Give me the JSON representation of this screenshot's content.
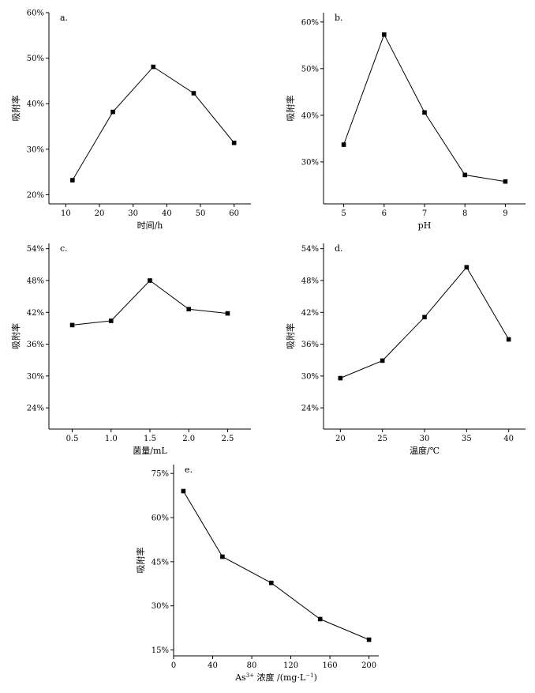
{
  "chart_data": [
    {
      "panel_label": "a.",
      "type": "line",
      "xlabel": "时间/h",
      "ylabel": "吸附率",
      "xlim": [
        5,
        65
      ],
      "ylim": [
        0.18,
        0.6
      ],
      "xticks": [
        10,
        20,
        30,
        40,
        50,
        60
      ],
      "yticks": [
        0.2,
        0.3,
        0.4,
        0.5,
        0.6
      ],
      "ytick_labels": [
        "20%",
        "30%",
        "40%",
        "50%",
        "60%"
      ],
      "x": [
        12,
        24,
        36,
        48,
        60
      ],
      "y": [
        0.232,
        0.382,
        0.481,
        0.423,
        0.314
      ]
    },
    {
      "panel_label": "b.",
      "type": "line",
      "xlabel": "pH",
      "ylabel": "吸附率",
      "xlim": [
        4.5,
        9.5
      ],
      "ylim": [
        0.21,
        0.62
      ],
      "xticks": [
        5,
        6,
        7,
        8,
        9
      ],
      "yticks": [
        0.3,
        0.4,
        0.5,
        0.6
      ],
      "ytick_labels": [
        "30%",
        "40%",
        "50%",
        "60%"
      ],
      "x": [
        5,
        6,
        7,
        8,
        9
      ],
      "y": [
        0.337,
        0.573,
        0.406,
        0.272,
        0.258
      ]
    },
    {
      "panel_label": "c.",
      "type": "line",
      "xlabel": "菌量/mL",
      "ylabel": "吸附率",
      "xlim": [
        0.2,
        2.8
      ],
      "ylim": [
        0.2,
        0.55
      ],
      "xticks": [
        0.5,
        1.0,
        1.5,
        2.0,
        2.5
      ],
      "xtick_labels": [
        "0.5",
        "1.0",
        "1.5",
        "2.0",
        "2.5"
      ],
      "yticks": [
        0.24,
        0.3,
        0.36,
        0.42,
        0.48,
        0.54
      ],
      "ytick_labels": [
        "24%",
        "30%",
        "36%",
        "42%",
        "48%",
        "54%"
      ],
      "x": [
        0.5,
        1.0,
        1.5,
        2.0,
        2.5
      ],
      "y": [
        0.396,
        0.404,
        0.48,
        0.426,
        0.418
      ]
    },
    {
      "panel_label": "d.",
      "type": "line",
      "xlabel": "温度/℃",
      "ylabel": "吸附率",
      "xlim": [
        18,
        42
      ],
      "ylim": [
        0.2,
        0.55
      ],
      "xticks": [
        20,
        25,
        30,
        35,
        40
      ],
      "yticks": [
        0.24,
        0.3,
        0.36,
        0.42,
        0.48,
        0.54
      ],
      "ytick_labels": [
        "24%",
        "30%",
        "36%",
        "42%",
        "48%",
        "54%"
      ],
      "x": [
        20,
        25,
        30,
        35,
        40
      ],
      "y": [
        0.296,
        0.329,
        0.411,
        0.505,
        0.369
      ]
    },
    {
      "panel_label": "e.",
      "type": "line",
      "xlabel_main": "As",
      "xlabel_sup": "3+",
      "xlabel_rest": " 浓度 /(mg·L",
      "xlabel_sup2": "−1",
      "xlabel_end": ")",
      "ylabel": "吸附率",
      "xlim": [
        0,
        210
      ],
      "ylim": [
        0.13,
        0.78
      ],
      "xticks": [
        0,
        40,
        80,
        120,
        160,
        200
      ],
      "yticks": [
        0.15,
        0.3,
        0.45,
        0.6,
        0.75
      ],
      "ytick_labels": [
        "15%",
        "30%",
        "45%",
        "60%",
        "75%"
      ],
      "x": [
        10,
        50,
        100,
        150,
        200
      ],
      "y": [
        0.69,
        0.467,
        0.378,
        0.255,
        0.185
      ]
    }
  ]
}
